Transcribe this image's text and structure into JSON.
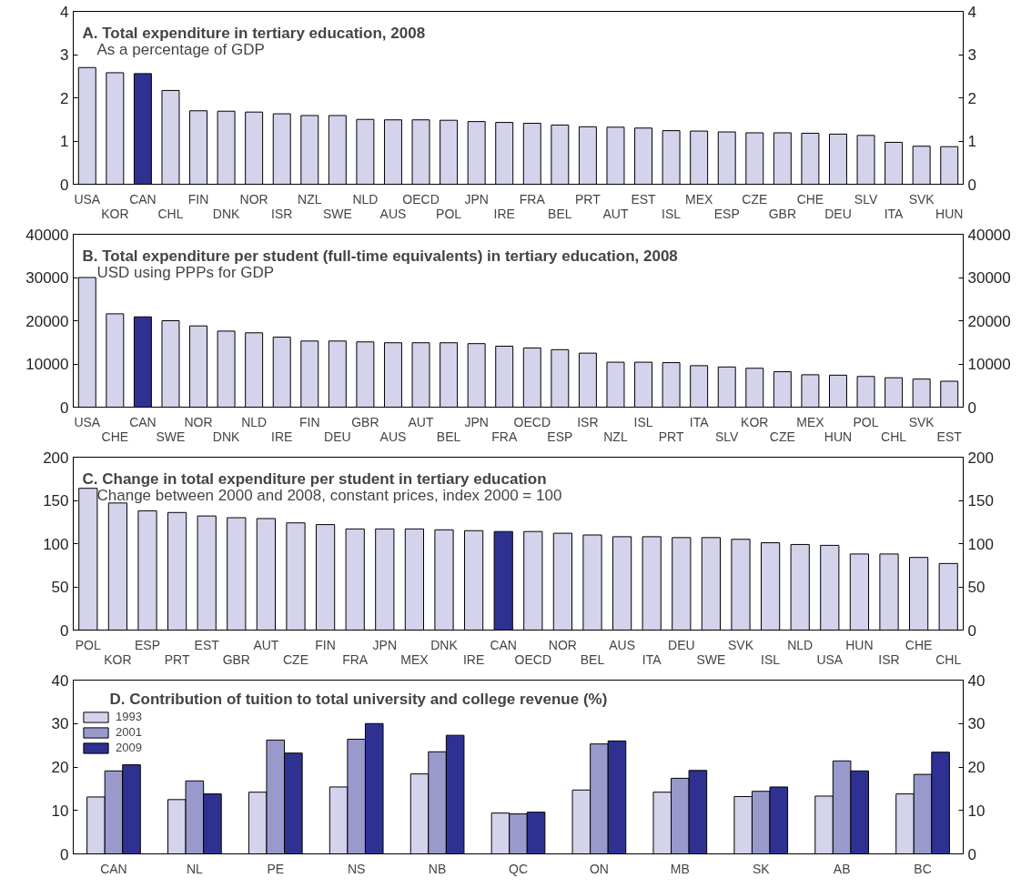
{
  "chart_data": [
    {
      "type": "bar",
      "title": "A. Total expenditure in tertiary education, 2008",
      "subtitle": "As a percentage of GDP",
      "categories": [
        "USA",
        "KOR",
        "CAN",
        "CHL",
        "FIN",
        "DNK",
        "NOR",
        "ISR",
        "NZL",
        "SWE",
        "NLD",
        "AUS",
        "OECD",
        "POL",
        "JPN",
        "IRE",
        "FRA",
        "BEL",
        "PRT",
        "AUT",
        "EST",
        "ISL",
        "MEX",
        "ESP",
        "CZE",
        "GBR",
        "CHE",
        "DEU",
        "SLV",
        "ITA",
        "SVK",
        "HUN"
      ],
      "values": [
        2.7,
        2.58,
        2.56,
        2.17,
        1.7,
        1.69,
        1.67,
        1.63,
        1.59,
        1.59,
        1.5,
        1.49,
        1.49,
        1.48,
        1.45,
        1.43,
        1.41,
        1.37,
        1.33,
        1.32,
        1.3,
        1.24,
        1.23,
        1.21,
        1.19,
        1.19,
        1.18,
        1.16,
        1.13,
        0.97,
        0.88,
        0.87
      ],
      "colors": [
        "#d3d3ec",
        "#d3d3ec",
        "#2e3192",
        "#d3d3ec",
        "#d3d3ec",
        "#d3d3ec",
        "#d3d3ec",
        "#d3d3ec",
        "#d3d3ec",
        "#d3d3ec",
        "#d3d3ec",
        "#d3d3ec",
        "#d3d3ec",
        "#d3d3ec",
        "#d3d3ec",
        "#d3d3ec",
        "#d3d3ec",
        "#d3d3ec",
        "#d3d3ec",
        "#d3d3ec",
        "#d3d3ec",
        "#d3d3ec",
        "#d3d3ec",
        "#d3d3ec",
        "#d3d3ec",
        "#d3d3ec",
        "#d3d3ec",
        "#d3d3ec",
        "#d3d3ec",
        "#d3d3ec",
        "#d3d3ec",
        "#d3d3ec"
      ],
      "ylim": [
        0,
        4
      ],
      "yticks": [
        0,
        1,
        2,
        3,
        4
      ],
      "y2lim": [
        0,
        4
      ],
      "y2ticks": [
        0,
        1,
        2,
        3,
        4
      ],
      "grid": false,
      "legend": false
    },
    {
      "type": "bar",
      "title": "B. Total expenditure per student (full-time equivalents) in tertiary education, 2008",
      "subtitle": "USD using PPPs for GDP",
      "categories": [
        "USA",
        "CHE",
        "CAN",
        "SWE",
        "NOR",
        "DNK",
        "NLD",
        "IRE",
        "FIN",
        "DEU",
        "GBR",
        "AUS",
        "AUT",
        "BEL",
        "JPN",
        "FRA",
        "OECD",
        "ESP",
        "ISR",
        "NZL",
        "ISL",
        "PRT",
        "ITA",
        "SLV",
        "KOR",
        "CZE",
        "MEX",
        "HUN",
        "POL",
        "CHL",
        "SVK",
        "EST"
      ],
      "values": [
        30000,
        21600,
        20900,
        20000,
        18800,
        17600,
        17200,
        16200,
        15300,
        15300,
        15100,
        14900,
        14900,
        14900,
        14700,
        14100,
        13700,
        13300,
        12500,
        10400,
        10400,
        10300,
        9600,
        9300,
        9000,
        8200,
        7500,
        7400,
        7100,
        6800,
        6500,
        6000
      ],
      "colors": [
        "#d3d3ec",
        "#d3d3ec",
        "#2e3192",
        "#d3d3ec",
        "#d3d3ec",
        "#d3d3ec",
        "#d3d3ec",
        "#d3d3ec",
        "#d3d3ec",
        "#d3d3ec",
        "#d3d3ec",
        "#d3d3ec",
        "#d3d3ec",
        "#d3d3ec",
        "#d3d3ec",
        "#d3d3ec",
        "#d3d3ec",
        "#d3d3ec",
        "#d3d3ec",
        "#d3d3ec",
        "#d3d3ec",
        "#d3d3ec",
        "#d3d3ec",
        "#d3d3ec",
        "#d3d3ec",
        "#d3d3ec",
        "#d3d3ec",
        "#d3d3ec",
        "#d3d3ec",
        "#d3d3ec",
        "#d3d3ec",
        "#d3d3ec"
      ],
      "ylim": [
        0,
        40000
      ],
      "yticks": [
        0,
        10000,
        20000,
        30000,
        40000
      ],
      "y2lim": [
        0,
        40000
      ],
      "y2ticks": [
        0,
        10000,
        20000,
        30000,
        40000
      ],
      "grid": false,
      "legend": false
    },
    {
      "type": "bar",
      "title": "C. Change in total expenditure per student in tertiary education",
      "subtitle": "Change between 2000 and 2008, constant prices, index 2000 = 100",
      "categories": [
        "POL",
        "KOR",
        "ESP",
        "PRT",
        "EST",
        "GBR",
        "AUT",
        "CZE",
        "FIN",
        "FRA",
        "JPN",
        "MEX",
        "DNK",
        "IRE",
        "CAN",
        "OECD",
        "NOR",
        "BEL",
        "AUS",
        "ITA",
        "DEU",
        "SWE",
        "SVK",
        "ISL",
        "NLD",
        "USA",
        "HUN",
        "ISR",
        "CHE",
        "CHL"
      ],
      "values": [
        164,
        147,
        138,
        136,
        132,
        130,
        129,
        124,
        122,
        117,
        117,
        117,
        116,
        115,
        114,
        114,
        112,
        110,
        108,
        108,
        107,
        107,
        105,
        101,
        99,
        98,
        88,
        88,
        84,
        77
      ],
      "colors": [
        "#d3d3ec",
        "#d3d3ec",
        "#d3d3ec",
        "#d3d3ec",
        "#d3d3ec",
        "#d3d3ec",
        "#d3d3ec",
        "#d3d3ec",
        "#d3d3ec",
        "#d3d3ec",
        "#d3d3ec",
        "#d3d3ec",
        "#d3d3ec",
        "#d3d3ec",
        "#2e3192",
        "#d3d3ec",
        "#d3d3ec",
        "#d3d3ec",
        "#d3d3ec",
        "#d3d3ec",
        "#d3d3ec",
        "#d3d3ec",
        "#d3d3ec",
        "#d3d3ec",
        "#d3d3ec",
        "#d3d3ec",
        "#d3d3ec",
        "#d3d3ec",
        "#d3d3ec",
        "#d3d3ec"
      ],
      "ylim": [
        0,
        200
      ],
      "yticks": [
        0,
        50,
        100,
        150,
        200
      ],
      "y2lim": [
        0,
        200
      ],
      "y2ticks": [
        0,
        50,
        100,
        150,
        200
      ],
      "grid": false,
      "legend": false
    },
    {
      "type": "bar",
      "title": "D. Contribution of tuition to total university and college revenue (%)",
      "categories": [
        "CAN",
        "NL",
        "PE",
        "NS",
        "NB",
        "QC",
        "ON",
        "MB",
        "SK",
        "AB",
        "BC"
      ],
      "series": [
        {
          "name": "1993",
          "color": "#d3d3ec",
          "values": [
            13.1,
            12.5,
            14.2,
            15.4,
            18.4,
            9.4,
            14.7,
            14.2,
            13.2,
            13.3,
            13.8
          ]
        },
        {
          "name": "2001",
          "color": "#9999cc",
          "values": [
            19.1,
            16.8,
            26.2,
            26.4,
            23.5,
            9.2,
            25.3,
            17.4,
            14.4,
            21.4,
            18.3
          ]
        },
        {
          "name": "2009",
          "color": "#2e3192",
          "values": [
            20.5,
            13.8,
            23.2,
            30,
            27.3,
            9.6,
            26,
            19.2,
            15.4,
            19.1,
            23.4
          ]
        }
      ],
      "ylim": [
        0,
        40
      ],
      "yticks": [
        0,
        10,
        20,
        30,
        40
      ],
      "y2lim": [
        0,
        40
      ],
      "y2ticks": [
        0,
        10,
        20,
        30,
        40
      ],
      "grid": false,
      "legend": "top left"
    }
  ]
}
